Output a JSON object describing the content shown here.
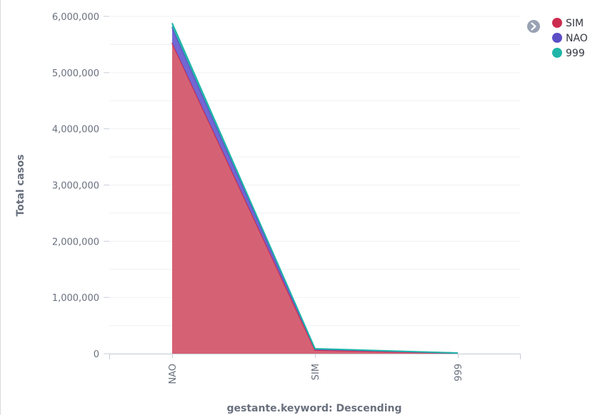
{
  "chart_data": {
    "type": "area",
    "stacked": true,
    "categories": [
      "NAO",
      "SIM",
      "999"
    ],
    "series": [
      {
        "name": "SIM",
        "color": "#cc2c4f",
        "fill": "#d35a6d",
        "values": [
          5530000,
          65000,
          8000
        ]
      },
      {
        "name": "NAO",
        "color": "#5b4ec6",
        "fill": "#6b5fd1",
        "values": [
          280000,
          18000,
          3000
        ]
      },
      {
        "name": "999",
        "color": "#1fb5a8",
        "fill": "#2ab7ae",
        "values": [
          70000,
          6000,
          1000
        ]
      }
    ],
    "yticks": [
      0,
      1000000,
      2000000,
      3000000,
      4000000,
      5000000,
      6000000
    ],
    "ytick_labels": [
      "0",
      "1,000,000",
      "2,000,000",
      "3,000,000",
      "4,000,000",
      "5,000,000",
      "6,000,000"
    ],
    "ylim": [
      0,
      6000000
    ],
    "ylabel": "Total casos",
    "xlabel": "gestante.keyword: Descending",
    "grid": true,
    "legend_position": "top-right",
    "legend_toggle_icon": "chevron-right-circle-icon"
  }
}
